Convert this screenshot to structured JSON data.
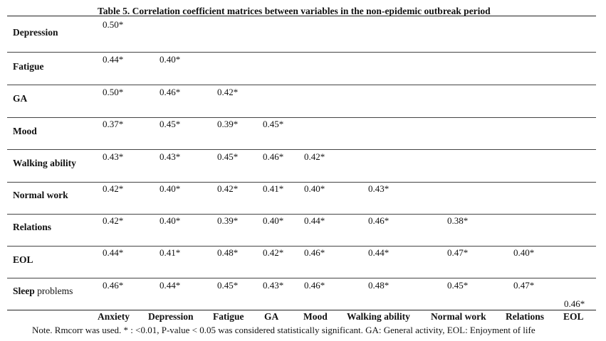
{
  "table": {
    "title": "Table 5. Correlation coefficient matrices between variables in the non-epidemic outbreak period",
    "columns": [
      "Anxiety",
      "Depression",
      "Fatigue",
      "GA",
      "Mood",
      "Walking ability",
      "Normal work",
      "Relations",
      "EOL"
    ],
    "rows": [
      {
        "label": "Depression",
        "values": [
          "0.50*"
        ]
      },
      {
        "label": "Fatigue",
        "values": [
          "0.44*",
          "0.40*"
        ]
      },
      {
        "label": "GA",
        "values": [
          "0.50*",
          "0.46*",
          "0.42*"
        ]
      },
      {
        "label": "Mood",
        "values": [
          "0.37*",
          "0.45*",
          "0.39*",
          "0.45*"
        ]
      },
      {
        "label": "Walking ability",
        "values": [
          "0.43*",
          "0.43*",
          "0.45*",
          "0.46*",
          "0.42*"
        ]
      },
      {
        "label": "Normal work",
        "values": [
          "0.42*",
          "0.40*",
          "0.42*",
          "0.41*",
          "0.40*",
          "0.43*"
        ]
      },
      {
        "label": "Relations",
        "values": [
          "0.42*",
          "0.40*",
          "0.39*",
          "0.40*",
          "0.44*",
          "0.46*",
          "0.38*"
        ]
      },
      {
        "label": "EOL",
        "values": [
          "0.44*",
          "0.41*",
          "0.48*",
          "0.42*",
          "0.46*",
          "0.44*",
          "0.47*",
          "0.40*"
        ]
      },
      {
        "label_bold": "Sleep",
        "label_normal": " problems",
        "values": [
          "0.46*",
          "0.44*",
          "0.45*",
          "0.43*",
          "0.46*",
          "0.48*",
          "0.45*",
          "0.47*",
          "0.46*"
        ]
      }
    ],
    "note": "Note. Rmcorr was used. * : <0.01, P-value < 0.05 was considered statistically significant. GA: General activity, EOL: Enjoyment of life"
  }
}
